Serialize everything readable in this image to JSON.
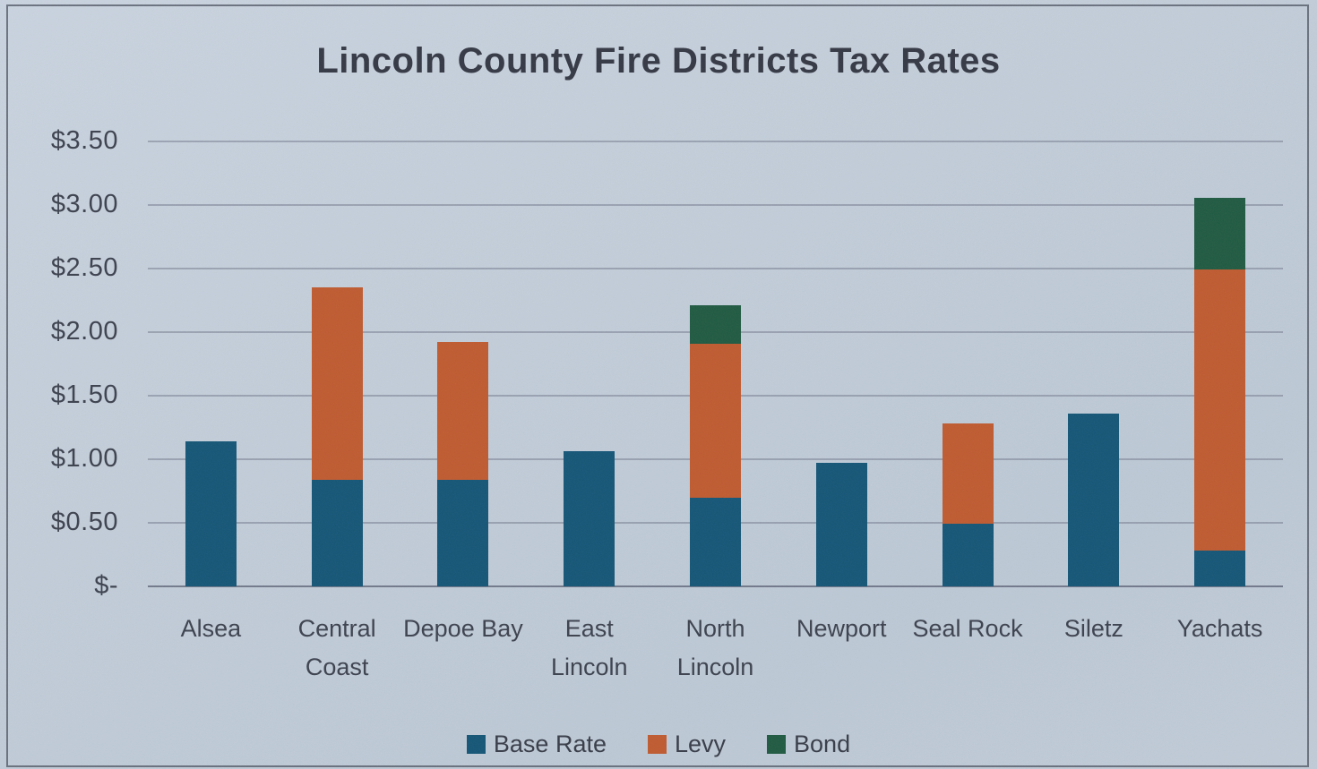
{
  "chart_data": {
    "type": "bar",
    "variant": "stacked",
    "title": "Lincoln County Fire Districts Tax Rates",
    "categories": [
      "Alsea",
      "Central Coast",
      "Depoe Bay",
      "East Lincoln",
      "North Lincoln",
      "Newport",
      "Seal Rock",
      "Siletz",
      "Yachats"
    ],
    "series": [
      {
        "name": "Base Rate",
        "color": "#165677",
        "values": [
          1.14,
          0.84,
          0.84,
          1.06,
          0.7,
          0.97,
          0.49,
          1.36,
          0.28
        ]
      },
      {
        "name": "Levy",
        "color": "#bf5b31",
        "values": [
          0,
          1.51,
          1.08,
          0,
          1.21,
          0,
          0.79,
          0,
          2.21
        ]
      },
      {
        "name": "Bond",
        "color": "#205a42",
        "values": [
          0,
          0,
          0,
          0,
          0.3,
          0,
          0,
          0,
          0.57
        ]
      }
    ],
    "totals": [
      1.14,
      2.35,
      1.92,
      1.06,
      2.21,
      0.97,
      1.28,
      1.36,
      3.06
    ],
    "y_ticks": [
      "$3.50",
      "$3.00",
      "$2.50",
      "$2.00",
      "$1.50",
      "$1.00",
      "$0.50",
      "$-"
    ],
    "y_tick_values": [
      3.5,
      3.0,
      2.5,
      2.0,
      1.5,
      1.0,
      0.5,
      0
    ],
    "ylim": [
      0,
      3.5
    ],
    "xlabel": "",
    "ylabel": "",
    "grid": true,
    "legend_position": "bottom"
  }
}
